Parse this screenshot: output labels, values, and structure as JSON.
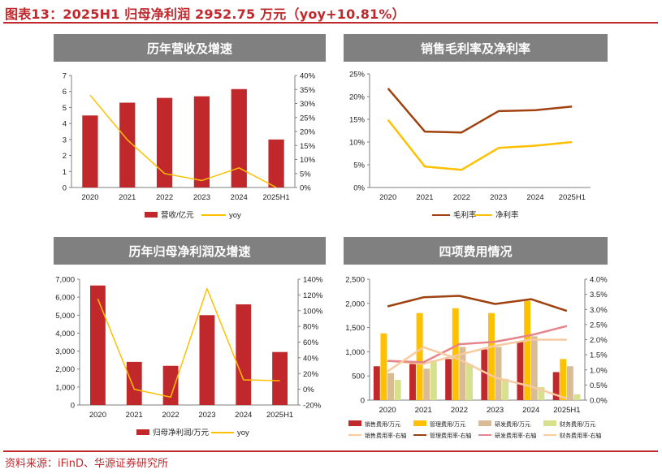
{
  "page": {
    "title": "图表13：2025H1 归母净利润 2952.75 万元（yoy+10.81%）",
    "source": "资料来源：iFinD、华源证券研究所"
  },
  "colors": {
    "brand_red": "#c0282c",
    "bar_red": "#c0282c",
    "yellow": "#ffc000",
    "tan": "#d9bb96",
    "light_green": "#d7e08c",
    "dark_red": "#c0282c",
    "brown": "#a0420f",
    "pink": "#e6848a",
    "peach": "#f7caa0",
    "header_gray": "#808080"
  },
  "chart_data": [
    {
      "id": "revenue",
      "type": "bar",
      "title": "历年营收及增速",
      "categories": [
        "2020",
        "2021",
        "2022",
        "2023",
        "2024",
        "2025H1"
      ],
      "series": [
        {
          "name": "营收/亿元",
          "type": "bar",
          "axis": "left",
          "values": [
            4.5,
            5.3,
            5.6,
            5.7,
            6.15,
            3.0
          ]
        },
        {
          "name": "yoy",
          "type": "line",
          "axis": "right",
          "values": [
            0.33,
            0.17,
            0.05,
            0.025,
            0.07,
            0.0
          ]
        }
      ],
      "left_axis": {
        "min": 0,
        "max": 7,
        "ticks": [
          "0",
          "1",
          "2",
          "3",
          "4",
          "5",
          "6",
          "7"
        ]
      },
      "right_axis": {
        "min": 0,
        "max": 0.4,
        "ticks": [
          "0%",
          "5%",
          "10%",
          "15%",
          "20%",
          "25%",
          "30%",
          "35%",
          "40%"
        ]
      }
    },
    {
      "id": "margin",
      "type": "line",
      "title": "销售毛利率及净利率",
      "categories": [
        "2020",
        "2021",
        "2022",
        "2023",
        "2024",
        "2025H1"
      ],
      "series": [
        {
          "name": "毛利率",
          "type": "line",
          "axis": "left",
          "values": [
            0.218,
            0.123,
            0.121,
            0.168,
            0.17,
            0.178
          ]
        },
        {
          "name": "净利率",
          "type": "line",
          "axis": "left",
          "values": [
            0.149,
            0.046,
            0.039,
            0.087,
            0.092,
            0.1
          ]
        }
      ],
      "left_axis": {
        "min": 0,
        "max": 0.25,
        "ticks": [
          "0%",
          "5%",
          "10%",
          "15%",
          "20%",
          "25%"
        ]
      }
    },
    {
      "id": "netprofit",
      "type": "bar",
      "title": "历年归母净利润及增速",
      "categories": [
        "2020",
        "2021",
        "2022",
        "2023",
        "2024",
        "2025H1"
      ],
      "series": [
        {
          "name": "归母净利润/万元",
          "type": "bar",
          "axis": "left",
          "values": [
            6650,
            2400,
            2180,
            5000,
            5600,
            2950
          ]
        },
        {
          "name": "yoy",
          "type": "line",
          "axis": "right",
          "values": [
            1.15,
            -0.0,
            -0.1,
            1.28,
            0.12,
            0.11
          ]
        }
      ],
      "left_axis": {
        "min": 0,
        "max": 7000,
        "ticks": [
          "0",
          "1,000",
          "2,000",
          "3,000",
          "4,000",
          "5,000",
          "6,000",
          "7,000"
        ]
      },
      "right_axis": {
        "min": -0.2,
        "max": 1.4,
        "ticks": [
          "-20%",
          "0%",
          "20%",
          "40%",
          "60%",
          "80%",
          "100%",
          "120%",
          "140%"
        ]
      }
    },
    {
      "id": "expenses",
      "type": "bar",
      "title": "四项费用情况",
      "categories": [
        "2020",
        "2021",
        "2022",
        "2023",
        "2024",
        "2025H1"
      ],
      "series": [
        {
          "name": "销售费用/万元",
          "type": "bar",
          "axis": "left",
          "values": [
            700,
            750,
            850,
            1050,
            1200,
            580
          ]
        },
        {
          "name": "管理费用/万元",
          "type": "bar",
          "axis": "left",
          "values": [
            1380,
            1800,
            1900,
            1800,
            2050,
            850
          ]
        },
        {
          "name": "研发费用/万元",
          "type": "bar",
          "axis": "left",
          "values": [
            560,
            650,
            1100,
            1100,
            1320,
            700
          ]
        },
        {
          "name": "财务费用/万元",
          "type": "bar",
          "axis": "left",
          "values": [
            420,
            820,
            740,
            440,
            270,
            120
          ]
        },
        {
          "name": "销售费用率-右轴",
          "type": "line",
          "axis": "right",
          "values": [
            0.013,
            0.012,
            0.015,
            0.018,
            0.02,
            0.02
          ]
        },
        {
          "name": "管理费用率-右轴",
          "type": "line",
          "axis": "right",
          "values": [
            0.031,
            0.034,
            0.0345,
            0.0318,
            0.0334,
            0.0295
          ]
        },
        {
          "name": "研发费用率-右轴",
          "type": "line",
          "axis": "right",
          "values": [
            0.013,
            0.0125,
            0.0185,
            0.0193,
            0.0215,
            0.0245
          ]
        },
        {
          "name": "财务费用率-右轴",
          "type": "line",
          "axis": "right",
          "values": [
            0.0095,
            0.0175,
            0.0135,
            0.0075,
            0.0045,
            0.0005
          ]
        }
      ],
      "left_axis": {
        "min": 0,
        "max": 2500,
        "ticks": [
          "0",
          "500",
          "1,000",
          "1,500",
          "2,000",
          "2,500"
        ]
      },
      "right_axis": {
        "min": 0,
        "max": 0.04,
        "ticks": [
          "0.0%",
          "0.5%",
          "1.0%",
          "1.5%",
          "2.0%",
          "2.5%",
          "3.0%",
          "3.5%",
          "4.0%"
        ]
      }
    }
  ]
}
